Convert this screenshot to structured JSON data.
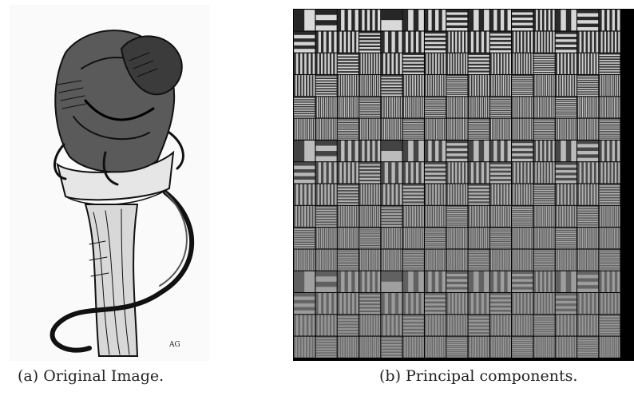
{
  "figure": {
    "panel_a": {
      "caption": "(a) Original Image.",
      "signature": "AG"
    },
    "panel_b": {
      "caption": "(b) Principal components.",
      "grid": {
        "rows": 16,
        "cols": 16,
        "visible_cols": 15
      }
    }
  }
}
